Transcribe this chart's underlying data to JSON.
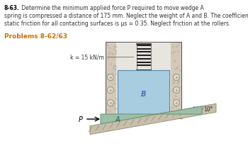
{
  "title_bold": "8-63.",
  "title_rest": " Determine the minimum applied force P required to move wedge A to the right. The spring is compressed a distance of 175 mm. Neglect the weight of A and B. The coefficient of static friction for all contacting surfaces is μs = 0.35. Neglect friction at the rollers.",
  "subtitle": "Problems 8-62/63",
  "spring_label": "k = 15 kN/m",
  "wedge_label": "A",
  "block_label": "B",
  "force_label": "P",
  "angle_label": "10°",
  "bg_color": "#ffffff",
  "text_color": "#333333",
  "subtitle_color": "#c87000",
  "wedge_color": "#9dbfaa",
  "block_color": "#a8cce0",
  "wall_fill": "#d4c9b8",
  "wall_hatch_color": "#b8ad9c",
  "spring_color": "#444444",
  "roller_color": "#c8c8c8",
  "ground_fill": "#c8bfaa",
  "ground_line_color": "#888878",
  "arrow_color": "#000000",
  "border_color": "#555555"
}
